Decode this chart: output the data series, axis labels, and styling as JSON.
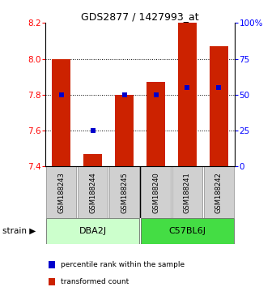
{
  "title": "GDS2877 / 1427993_at",
  "samples": [
    "GSM188243",
    "GSM188244",
    "GSM188245",
    "GSM188240",
    "GSM188241",
    "GSM188242"
  ],
  "transformed_counts": [
    8.0,
    7.47,
    7.8,
    7.87,
    8.22,
    8.07
  ],
  "percentile_ranks": [
    50,
    25,
    50,
    50,
    55,
    55
  ],
  "groups": [
    {
      "name": "DBA2J",
      "indices": [
        0,
        1,
        2
      ],
      "color": "#ccffcc"
    },
    {
      "name": "C57BL6J",
      "indices": [
        3,
        4,
        5
      ],
      "color": "#44dd44"
    }
  ],
  "ylim_left": [
    7.4,
    8.2
  ],
  "ylim_right": [
    0,
    100
  ],
  "yticks_left": [
    7.4,
    7.6,
    7.8,
    8.0,
    8.2
  ],
  "yticks_right": [
    0,
    25,
    50,
    75,
    100
  ],
  "ytick_labels_right": [
    "0",
    "25",
    "50",
    "75",
    "100%"
  ],
  "bar_color": "#cc2200",
  "dot_color": "#0000cc",
  "bar_width": 0.6,
  "legend_items": [
    {
      "color": "#cc2200",
      "label": "transformed count"
    },
    {
      "color": "#0000cc",
      "label": "percentile rank within the sample"
    }
  ]
}
